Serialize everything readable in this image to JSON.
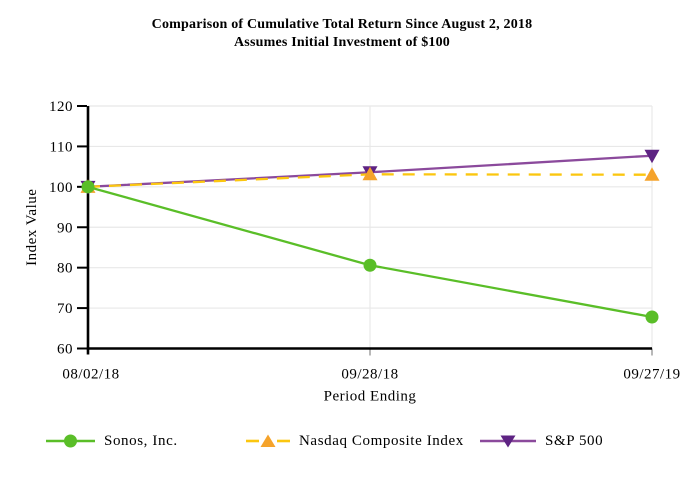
{
  "chart_data": {
    "type": "line",
    "title": "Comparison of Cumulative Total Return Since August 2, 2018",
    "subtitle": "Assumes Initial Investment of $100",
    "categories": [
      "08/02/18",
      "09/28/18",
      "09/27/19"
    ],
    "series": [
      {
        "name": "Sonos, Inc.",
        "values": [
          100,
          80.6,
          67.8
        ],
        "color": "#5abe28",
        "marker": "circle",
        "marker_color": "#5abe28",
        "line_style": "solid"
      },
      {
        "name": "Nasdaq Composite Index",
        "values": [
          100,
          103.1,
          103.0
        ],
        "color": "#fbc60f",
        "marker": "triangle-up",
        "marker_color": "#f5a32b",
        "line_style": "dashed"
      },
      {
        "name": "S&P 500",
        "values": [
          100,
          103.6,
          107.7
        ],
        "color": "#8b4a9c",
        "marker": "triangle-down",
        "marker_color": "#5e2383",
        "line_style": "solid"
      }
    ],
    "xlabel": "Period Ending",
    "ylabel": "Index Value",
    "ylim": [
      60,
      120
    ],
    "yticks": [
      60,
      70,
      80,
      90,
      100,
      110,
      120
    ],
    "grid": true,
    "legend_position": "bottom",
    "axis_color": "#000000",
    "grid_color": "#e8e8e8",
    "tick_color": "#999999"
  }
}
